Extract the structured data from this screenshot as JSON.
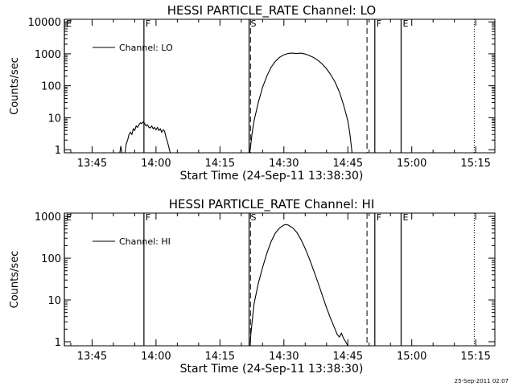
{
  "footer": {
    "stamp": "25-Sep-2011 02:07"
  },
  "chart_data": [
    {
      "type": "line",
      "title": "HESSI PARTICLE_RATE Channel: LO",
      "xlabel": "Start Time (24-Sep-11 13:38:30)",
      "ylabel": "Counts/sec",
      "yscale": "log",
      "ylim": [
        0.8,
        12000
      ],
      "xlim": [
        "13:38:30",
        "15:19:30"
      ],
      "x_ticks": [
        "13:45",
        "14:00",
        "14:15",
        "14:30",
        "14:45",
        "15:00",
        "15:15"
      ],
      "y_ticks": [
        "1",
        "10",
        "100",
        "1000",
        "10000"
      ],
      "legend": {
        "placement": "top-left",
        "label": "Channel: LO"
      },
      "markers": [
        {
          "label": "E",
          "time": "13:38:30",
          "style": "solid"
        },
        {
          "label": "F",
          "time": "13:57:10",
          "style": "solid"
        },
        {
          "label": "S",
          "time": "14:21:50",
          "style": "solid"
        },
        {
          "label": "",
          "time": "14:22:10",
          "style": "dashed"
        },
        {
          "label": "",
          "time": "14:49:30",
          "style": "dashed"
        },
        {
          "label": "F",
          "time": "14:51:20",
          "style": "solid"
        },
        {
          "label": "E",
          "time": "14:57:30",
          "style": "solid"
        },
        {
          "label": "",
          "time": "15:14:40",
          "style": "dotted"
        }
      ],
      "series": [
        {
          "name": "Channel: LO",
          "segments": [
            [
              [
                "13:51:30",
                0.8
              ],
              [
                "13:51:45",
                1.3
              ],
              [
                "13:52:00",
                0.8
              ],
              [
                "13:52:45",
                0.8
              ],
              [
                "13:53:00",
                1.5
              ],
              [
                "13:53:20",
                2.0
              ],
              [
                "13:53:40",
                3.0
              ],
              [
                "13:54:00",
                3.5
              ],
              [
                "13:54:20",
                3.0
              ],
              [
                "13:54:40",
                4.5
              ],
              [
                "13:55:00",
                4.0
              ],
              [
                "13:55:20",
                5.5
              ],
              [
                "13:55:40",
                5.0
              ],
              [
                "13:56:00",
                6.0
              ],
              [
                "13:56:20",
                7.0
              ],
              [
                "13:56:40",
                6.5
              ],
              [
                "13:57:00",
                7.5
              ],
              [
                "13:57:20",
                6.5
              ],
              [
                "13:57:40",
                5.5
              ],
              [
                "13:58:00",
                6.0
              ],
              [
                "13:58:20",
                5.0
              ],
              [
                "13:58:40",
                4.8
              ],
              [
                "13:59:00",
                5.5
              ],
              [
                "13:59:20",
                4.5
              ],
              [
                "13:59:40",
                5.0
              ],
              [
                "14:00:00",
                4.2
              ],
              [
                "14:00:20",
                5.0
              ],
              [
                "14:00:40",
                4.0
              ],
              [
                "14:01:00",
                4.5
              ],
              [
                "14:01:20",
                3.5
              ],
              [
                "14:01:40",
                4.2
              ],
              [
                "14:02:00",
                3.8
              ],
              [
                "14:02:20",
                2.5
              ],
              [
                "14:02:40",
                1.8
              ],
              [
                "14:03:00",
                1.2
              ],
              [
                "14:03:20",
                0.8
              ]
            ],
            [
              [
                "14:22:00",
                0.8
              ],
              [
                "14:22:10",
                1.2
              ],
              [
                "14:22:30",
                3.0
              ],
              [
                "14:23:00",
                8
              ],
              [
                "14:24:00",
                30
              ],
              [
                "14:25:00",
                90
              ],
              [
                "14:26:00",
                200
              ],
              [
                "14:27:00",
                380
              ],
              [
                "14:28:00",
                580
              ],
              [
                "14:29:00",
                780
              ],
              [
                "14:30:00",
                930
              ],
              [
                "14:31:00",
                1030
              ],
              [
                "14:32:00",
                1050
              ],
              [
                "14:33:00",
                1020
              ],
              [
                "14:34:00",
                1050
              ],
              [
                "14:35:00",
                980
              ],
              [
                "14:36:00",
                880
              ],
              [
                "14:37:00",
                760
              ],
              [
                "14:38:00",
                620
              ],
              [
                "14:39:00",
                480
              ],
              [
                "14:40:00",
                340
              ],
              [
                "14:41:00",
                220
              ],
              [
                "14:42:00",
                130
              ],
              [
                "14:43:00",
                65
              ],
              [
                "14:44:00",
                25
              ],
              [
                "14:45:00",
                8
              ],
              [
                "14:45:30",
                3
              ],
              [
                "14:46:00",
                0.8
              ]
            ]
          ]
        }
      ]
    },
    {
      "type": "line",
      "title": "HESSI PARTICLE_RATE Channel: HI",
      "xlabel": "Start Time (24-Sep-11 13:38:30)",
      "ylabel": "Counts/sec",
      "yscale": "log",
      "ylim": [
        0.8,
        1200
      ],
      "xlim": [
        "13:38:30",
        "15:19:30"
      ],
      "x_ticks": [
        "13:45",
        "14:00",
        "14:15",
        "14:30",
        "14:45",
        "15:00",
        "15:15"
      ],
      "y_ticks": [
        "1",
        "10",
        "100",
        "1000"
      ],
      "legend": {
        "placement": "top-left",
        "label": "Channel: HI"
      },
      "markers": [
        {
          "label": "E",
          "time": "13:38:30",
          "style": "solid"
        },
        {
          "label": "F",
          "time": "13:57:10",
          "style": "solid"
        },
        {
          "label": "S",
          "time": "14:21:50",
          "style": "solid"
        },
        {
          "label": "",
          "time": "14:22:10",
          "style": "dashed"
        },
        {
          "label": "",
          "time": "14:49:30",
          "style": "dashed"
        },
        {
          "label": "F",
          "time": "14:51:20",
          "style": "solid"
        },
        {
          "label": "E",
          "time": "14:57:30",
          "style": "solid"
        },
        {
          "label": "",
          "time": "15:14:40",
          "style": "dotted"
        }
      ],
      "series": [
        {
          "name": "Channel: HI",
          "segments": [
            [
              [
                "14:22:05",
                0.8
              ],
              [
                "14:22:15",
                1.5
              ],
              [
                "14:22:40",
                4
              ],
              [
                "14:23:00",
                8
              ],
              [
                "14:24:00",
                25
              ],
              [
                "14:25:00",
                60
              ],
              [
                "14:26:00",
                130
              ],
              [
                "14:27:00",
                250
              ],
              [
                "14:28:00",
                400
              ],
              [
                "14:29:00",
                530
              ],
              [
                "14:30:00",
                620
              ],
              [
                "14:30:30",
                640
              ],
              [
                "14:31:00",
                620
              ],
              [
                "14:32:00",
                540
              ],
              [
                "14:33:00",
                420
              ],
              [
                "14:34:00",
                280
              ],
              [
                "14:35:00",
                170
              ],
              [
                "14:36:00",
                95
              ],
              [
                "14:37:00",
                50
              ],
              [
                "14:38:00",
                26
              ],
              [
                "14:39:00",
                13
              ],
              [
                "14:40:00",
                6.5
              ],
              [
                "14:41:00",
                3.5
              ],
              [
                "14:42:00",
                2.0
              ],
              [
                "14:42:30",
                1.5
              ],
              [
                "14:43:00",
                1.3
              ],
              [
                "14:43:30",
                1.6
              ],
              [
                "14:44:00",
                1.2
              ],
              [
                "14:44:30",
                1.0
              ],
              [
                "14:45:00",
                0.8
              ]
            ]
          ]
        }
      ]
    }
  ]
}
